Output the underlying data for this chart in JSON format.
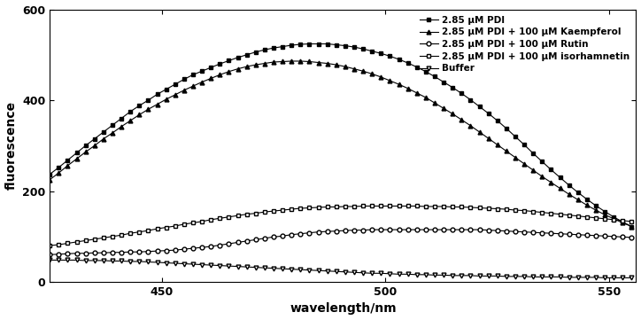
{
  "title": "",
  "xlabel": "wavelength/nm",
  "ylabel": "fluorescence",
  "xlim": [
    425,
    556
  ],
  "ylim": [
    0,
    600
  ],
  "xticks": [
    450,
    500,
    550
  ],
  "yticks": [
    0,
    200,
    400,
    600
  ],
  "background_color": "#ffffff",
  "series": [
    {
      "label": "2.85 μM PDI",
      "marker": "s",
      "markerfacecolor": "black",
      "markeredgecolor": "black",
      "color": "black",
      "x": [
        425,
        427,
        429,
        431,
        433,
        435,
        437,
        439,
        441,
        443,
        445,
        447,
        449,
        451,
        453,
        455,
        457,
        459,
        461,
        463,
        465,
        467,
        469,
        471,
        473,
        475,
        477,
        479,
        481,
        483,
        485,
        487,
        489,
        491,
        493,
        495,
        497,
        499,
        501,
        503,
        505,
        507,
        509,
        511,
        513,
        515,
        517,
        519,
        521,
        523,
        525,
        527,
        529,
        531,
        533,
        535,
        537,
        539,
        541,
        543,
        545,
        547,
        549,
        551,
        553,
        555
      ],
      "y": [
        237,
        252,
        268,
        284,
        300,
        315,
        330,
        345,
        360,
        375,
        388,
        400,
        413,
        424,
        435,
        446,
        456,
        464,
        472,
        480,
        487,
        494,
        500,
        506,
        511,
        515,
        518,
        521,
        523,
        524,
        524,
        524,
        522,
        520,
        517,
        513,
        508,
        503,
        497,
        490,
        482,
        473,
        463,
        452,
        440,
        428,
        415,
        401,
        386,
        371,
        355,
        338,
        320,
        302,
        283,
        265,
        247,
        230,
        213,
        197,
        182,
        168,
        155,
        143,
        132,
        122
      ]
    },
    {
      "label": "2.85 μM PDI + 100 μM Kaempferol",
      "marker": "^",
      "markerfacecolor": "black",
      "markeredgecolor": "black",
      "color": "black",
      "x": [
        425,
        427,
        429,
        431,
        433,
        435,
        437,
        439,
        441,
        443,
        445,
        447,
        449,
        451,
        453,
        455,
        457,
        459,
        461,
        463,
        465,
        467,
        469,
        471,
        473,
        475,
        477,
        479,
        481,
        483,
        485,
        487,
        489,
        491,
        493,
        495,
        497,
        499,
        501,
        503,
        505,
        507,
        509,
        511,
        513,
        515,
        517,
        519,
        521,
        523,
        525,
        527,
        529,
        531,
        533,
        535,
        537,
        539,
        541,
        543,
        545,
        547,
        549,
        551,
        553,
        555
      ],
      "y": [
        225,
        240,
        256,
        271,
        286,
        300,
        315,
        328,
        342,
        355,
        368,
        380,
        391,
        402,
        412,
        422,
        431,
        440,
        448,
        456,
        463,
        469,
        474,
        478,
        481,
        484,
        485,
        486,
        486,
        485,
        483,
        481,
        478,
        474,
        469,
        464,
        458,
        451,
        443,
        435,
        426,
        416,
        406,
        394,
        382,
        370,
        357,
        344,
        330,
        316,
        302,
        288,
        274,
        260,
        246,
        232,
        219,
        206,
        193,
        181,
        169,
        158,
        148,
        139,
        130,
        122
      ]
    },
    {
      "label": "2.85 μM PDI + 100 μM Rutin",
      "marker": "o",
      "markerfacecolor": "white",
      "markeredgecolor": "black",
      "color": "black",
      "x": [
        425,
        427,
        429,
        431,
        433,
        435,
        437,
        439,
        441,
        443,
        445,
        447,
        449,
        451,
        453,
        455,
        457,
        459,
        461,
        463,
        465,
        467,
        469,
        471,
        473,
        475,
        477,
        479,
        481,
        483,
        485,
        487,
        489,
        491,
        493,
        495,
        497,
        499,
        501,
        503,
        505,
        507,
        509,
        511,
        513,
        515,
        517,
        519,
        521,
        523,
        525,
        527,
        529,
        531,
        533,
        535,
        537,
        539,
        541,
        543,
        545,
        547,
        549,
        551,
        553,
        555
      ],
      "y": [
        60,
        61,
        62,
        63,
        63,
        64,
        64,
        65,
        65,
        66,
        66,
        67,
        68,
        69,
        70,
        72,
        74,
        76,
        78,
        81,
        84,
        87,
        90,
        93,
        96,
        99,
        101,
        104,
        106,
        108,
        110,
        111,
        112,
        113,
        114,
        114,
        115,
        115,
        115,
        115,
        115,
        115,
        115,
        115,
        115,
        115,
        115,
        115,
        115,
        114,
        113,
        112,
        111,
        110,
        109,
        108,
        107,
        106,
        105,
        104,
        103,
        102,
        101,
        100,
        99,
        98
      ]
    },
    {
      "label": "2.85 μM PDI + 100 μM isorhamnetin",
      "marker": "s",
      "markerfacecolor": "white",
      "markeredgecolor": "black",
      "color": "black",
      "x": [
        425,
        427,
        429,
        431,
        433,
        435,
        437,
        439,
        441,
        443,
        445,
        447,
        449,
        451,
        453,
        455,
        457,
        459,
        461,
        463,
        465,
        467,
        469,
        471,
        473,
        475,
        477,
        479,
        481,
        483,
        485,
        487,
        489,
        491,
        493,
        495,
        497,
        499,
        501,
        503,
        505,
        507,
        509,
        511,
        513,
        515,
        517,
        519,
        521,
        523,
        525,
        527,
        529,
        531,
        533,
        535,
        537,
        539,
        541,
        543,
        545,
        547,
        549,
        551,
        553,
        555
      ],
      "y": [
        80,
        82,
        85,
        88,
        91,
        94,
        97,
        100,
        103,
        107,
        110,
        113,
        117,
        120,
        123,
        127,
        130,
        133,
        137,
        140,
        143,
        146,
        149,
        151,
        154,
        156,
        158,
        160,
        162,
        163,
        164,
        165,
        165,
        166,
        166,
        167,
        167,
        167,
        167,
        167,
        167,
        167,
        166,
        166,
        166,
        165,
        165,
        164,
        163,
        162,
        161,
        160,
        158,
        157,
        155,
        153,
        151,
        149,
        147,
        145,
        143,
        141,
        139,
        137,
        135,
        133
      ]
    },
    {
      "label": "Buffer",
      "marker": "v",
      "markerfacecolor": "white",
      "markeredgecolor": "black",
      "color": "black",
      "x": [
        425,
        427,
        429,
        431,
        433,
        435,
        437,
        439,
        441,
        443,
        445,
        447,
        449,
        451,
        453,
        455,
        457,
        459,
        461,
        463,
        465,
        467,
        469,
        471,
        473,
        475,
        477,
        479,
        481,
        483,
        485,
        487,
        489,
        491,
        493,
        495,
        497,
        499,
        501,
        503,
        505,
        507,
        509,
        511,
        513,
        515,
        517,
        519,
        521,
        523,
        525,
        527,
        529,
        531,
        533,
        535,
        537,
        539,
        541,
        543,
        545,
        547,
        549,
        551,
        553,
        555
      ],
      "y": [
        48,
        48,
        48,
        48,
        47,
        47,
        47,
        46,
        46,
        45,
        45,
        44,
        43,
        42,
        41,
        40,
        39,
        38,
        37,
        36,
        35,
        34,
        33,
        32,
        31,
        30,
        29,
        28,
        27,
        26,
        25,
        24,
        23,
        22,
        21,
        20,
        19,
        19,
        18,
        17,
        17,
        16,
        16,
        15,
        15,
        14,
        14,
        14,
        13,
        13,
        13,
        12,
        12,
        12,
        11,
        11,
        11,
        11,
        10,
        10,
        10,
        10,
        9,
        9,
        9,
        9
      ]
    }
  ]
}
